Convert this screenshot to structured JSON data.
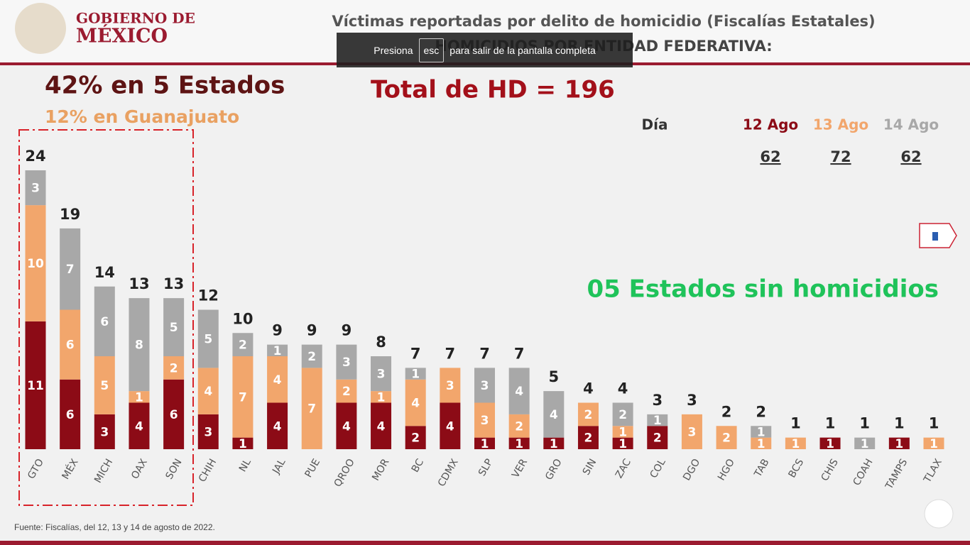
{
  "header": {
    "brand_top": "GOBIERNO DE",
    "brand_bottom": "MÉXICO"
  },
  "overlay": {
    "before": "Presiona",
    "key": "esc",
    "after": "para salir de la pantalla completa"
  },
  "chart_data": {
    "type": "bar",
    "title": "Víctimas reportadas por delito de homicidio (Fiscalías Estatales)",
    "subtitle": "HOMICIDIOS POR ENTIDAD FEDERATIVA:",
    "annotations": {
      "share": "42% en 5 Estados",
      "share_gto": "12% en Guanajuato",
      "total": "Total de HD = 196",
      "legend_title": "Día",
      "no_homicides": "05 Estados sin homicidios"
    },
    "source": "Fuente: Fiscalías, del 12, 13 y 14 de agosto de 2022.",
    "stacked": true,
    "categories": [
      "GTO",
      "MÉX",
      "MICH",
      "OAX",
      "SON",
      "CHIH",
      "NL",
      "JAL",
      "PUE",
      "QROO",
      "MOR",
      "BC",
      "CDMX",
      "SLP",
      "VER",
      "GRO",
      "SIN",
      "ZAC",
      "COL",
      "DGO",
      "HGO",
      "TAB",
      "BCS",
      "CHIS",
      "COAH",
      "TAMPS",
      "TLAX"
    ],
    "series": [
      {
        "name": "12 Ago",
        "color": "#8c0b16",
        "total": 62,
        "values": [
          11,
          6,
          3,
          4,
          6,
          3,
          1,
          4,
          null,
          4,
          4,
          2,
          4,
          1,
          1,
          1,
          2,
          1,
          2,
          null,
          null,
          null,
          null,
          1,
          null,
          1,
          null
        ]
      },
      {
        "name": "13 Ago",
        "color": "#f2a66c",
        "total": 72,
        "values": [
          10,
          6,
          5,
          1,
          2,
          4,
          7,
          4,
          7,
          2,
          1,
          4,
          3,
          3,
          2,
          null,
          2,
          1,
          null,
          3,
          2,
          1,
          1,
          null,
          null,
          null,
          1
        ]
      },
      {
        "name": "14 Ago",
        "color": "#a8a8a8",
        "total": 62,
        "values": [
          3,
          7,
          6,
          8,
          5,
          5,
          2,
          1,
          2,
          3,
          3,
          1,
          null,
          3,
          4,
          4,
          null,
          2,
          1,
          null,
          null,
          1,
          null,
          null,
          1,
          null,
          null
        ]
      }
    ],
    "totals": [
      24,
      19,
      14,
      13,
      13,
      12,
      10,
      9,
      9,
      9,
      8,
      7,
      7,
      7,
      7,
      5,
      4,
      4,
      3,
      3,
      2,
      2,
      1,
      1,
      1,
      1,
      1
    ]
  }
}
